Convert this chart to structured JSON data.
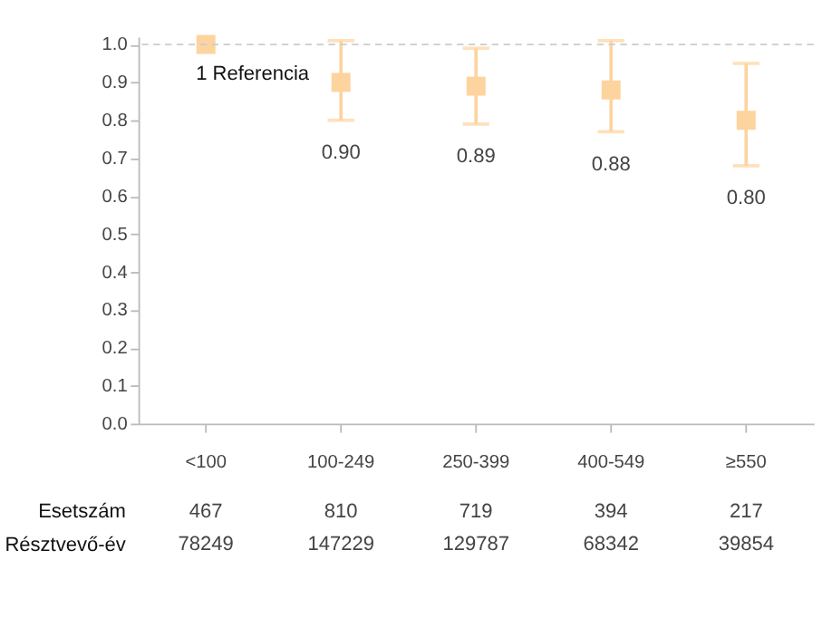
{
  "chart_data": {
    "type": "scatter",
    "categories": [
      "<100",
      "100-249",
      "250-399",
      "400-549",
      "≥550"
    ],
    "series": [
      {
        "color": "#fdd49e",
        "values": [
          1.0,
          0.9,
          0.89,
          0.88,
          0.8
        ],
        "errors": [
          null,
          [
            0.8,
            1.01
          ],
          [
            0.79,
            0.99
          ],
          [
            0.77,
            1.01
          ],
          [
            0.68,
            0.95
          ]
        ],
        "value_labels": [
          "1 Referencia",
          "0.90",
          "0.89",
          "0.88",
          "0.80"
        ]
      }
    ],
    "marker": "square",
    "ylim": [
      0,
      1.02
    ],
    "yticks": [
      {
        "value": 0,
        "label": "0.0"
      },
      0.1,
      0.2,
      0.3,
      0.4,
      0.5,
      0.6,
      0.7,
      0.8,
      0.9,
      {
        "value": 1,
        "label": "1.0"
      }
    ],
    "ref_lines": [
      {
        "axis": "y",
        "value": 1.0,
        "color": "#cccccc",
        "line_style": "dashed"
      }
    ],
    "grid": false,
    "annotations": [
      "Esetszám",
      "467",
      "810",
      "719",
      "394",
      "217",
      "Résztvevő-év",
      "78249",
      "147229",
      "129787",
      "68342",
      "39854"
    ]
  }
}
